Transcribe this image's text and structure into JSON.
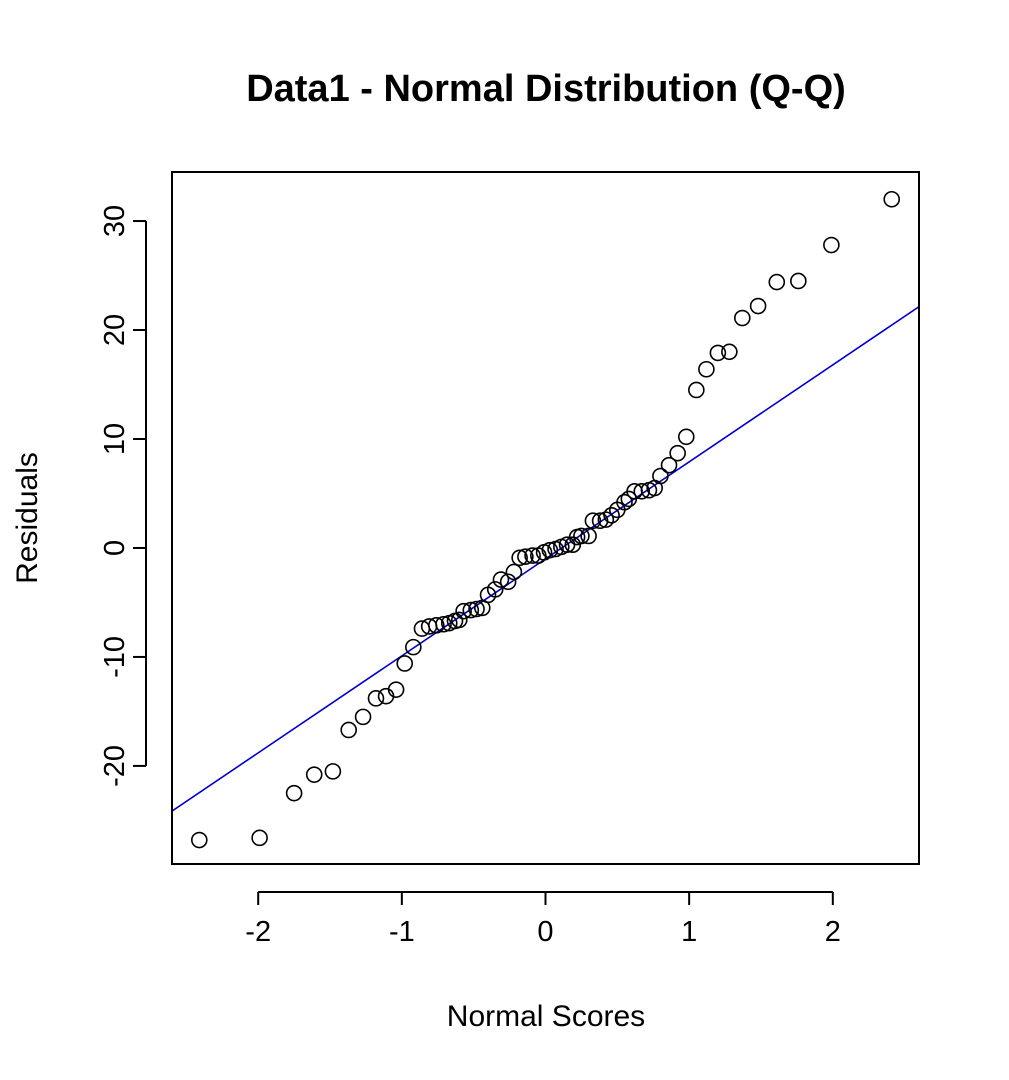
{
  "chart_data": {
    "type": "scatter",
    "title": "Data1 - Normal Distribution (Q-Q)",
    "xlabel": "Normal Scores",
    "ylabel": "Residuals",
    "xlim": [
      -2.6,
      2.6
    ],
    "ylim": [
      -29,
      34.5
    ],
    "x_ticks": [
      -2,
      -1,
      0,
      1,
      2
    ],
    "x_tick_labels": [
      "-2",
      "-1",
      "0",
      "1",
      "2"
    ],
    "y_ticks": [
      -20,
      -10,
      0,
      10,
      20,
      30
    ],
    "y_tick_labels": [
      "-20",
      "-10",
      "0",
      "10",
      "20",
      "30"
    ],
    "grid": false,
    "point_color": "#000000",
    "line_color": "#0000cc",
    "reference_line": {
      "intercept": -1.0,
      "slope": 8.9
    },
    "points": [
      [
        -2.41,
        -26.8
      ],
      [
        -1.99,
        -26.6
      ],
      [
        -1.75,
        -22.5
      ],
      [
        -1.61,
        -20.8
      ],
      [
        -1.48,
        -20.5
      ],
      [
        -1.37,
        -16.7
      ],
      [
        -1.27,
        -15.5
      ],
      [
        -1.18,
        -13.8
      ],
      [
        -1.11,
        -13.6
      ],
      [
        -1.04,
        -13.0
      ],
      [
        -0.98,
        -10.6
      ],
      [
        -0.92,
        -9.1
      ],
      [
        -0.86,
        -7.4
      ],
      [
        -0.81,
        -7.2
      ],
      [
        -0.76,
        -7.1
      ],
      [
        -0.71,
        -7.0
      ],
      [
        -0.67,
        -6.9
      ],
      [
        -0.63,
        -6.7
      ],
      [
        -0.6,
        -6.6
      ],
      [
        -0.57,
        -5.8
      ],
      [
        -0.52,
        -5.7
      ],
      [
        -0.48,
        -5.6
      ],
      [
        -0.44,
        -5.5
      ],
      [
        -0.4,
        -4.3
      ],
      [
        -0.35,
        -3.8
      ],
      [
        -0.31,
        -2.9
      ],
      [
        -0.26,
        -3.1
      ],
      [
        -0.22,
        -2.2
      ],
      [
        -0.18,
        -0.9
      ],
      [
        -0.14,
        -0.8
      ],
      [
        -0.09,
        -0.7
      ],
      [
        -0.05,
        -0.7
      ],
      [
        -0.01,
        -0.4
      ],
      [
        0.03,
        -0.2
      ],
      [
        0.07,
        -0.1
      ],
      [
        0.11,
        0.1
      ],
      [
        0.15,
        0.3
      ],
      [
        0.19,
        0.3
      ],
      [
        0.22,
        1.0
      ],
      [
        0.25,
        1.1
      ],
      [
        0.3,
        1.1
      ],
      [
        0.33,
        2.5
      ],
      [
        0.38,
        2.5
      ],
      [
        0.42,
        2.6
      ],
      [
        0.46,
        3.0
      ],
      [
        0.5,
        3.5
      ],
      [
        0.55,
        4.2
      ],
      [
        0.58,
        4.5
      ],
      [
        0.62,
        5.2
      ],
      [
        0.67,
        5.2
      ],
      [
        0.72,
        5.3
      ],
      [
        0.76,
        5.5
      ],
      [
        0.8,
        6.6
      ],
      [
        0.86,
        7.6
      ],
      [
        0.92,
        8.7
      ],
      [
        0.98,
        10.2
      ],
      [
        1.05,
        14.5
      ],
      [
        1.12,
        16.4
      ],
      [
        1.2,
        17.9
      ],
      [
        1.28,
        18.0
      ],
      [
        1.37,
        21.1
      ],
      [
        1.48,
        22.2
      ],
      [
        1.61,
        24.4
      ],
      [
        1.76,
        24.5
      ],
      [
        1.99,
        27.8
      ],
      [
        2.41,
        32.0
      ]
    ]
  }
}
